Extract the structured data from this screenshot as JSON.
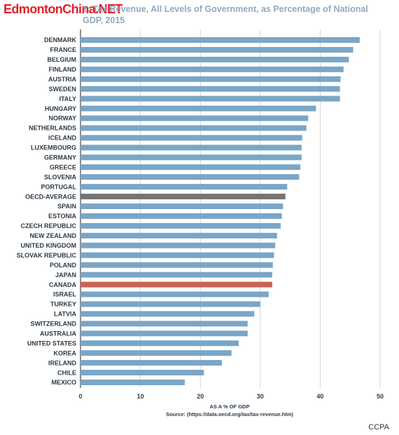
{
  "watermark": "EdmontonChina.NET",
  "credit": "CCPA",
  "chart_data": {
    "type": "bar",
    "orientation": "horizontal",
    "title": "1: Tax Revenue, All Levels of Government, as Percentage of National GDP, 2015",
    "xlabel": "AS A % OF GDP",
    "source": "Source: (https://data.oecd.org/tax/tax-revenue.htm)",
    "xlim": [
      0,
      50
    ],
    "xticks": [
      0,
      10,
      20,
      30,
      40,
      50
    ],
    "grid": true,
    "colors": {
      "default": "#7aa6c7",
      "oecd": "#747474",
      "canada": "#c96454"
    },
    "categories": [
      "DENMARK",
      "FRANCE",
      "BELGIUM",
      "FINLAND",
      "AUSTRIA",
      "SWEDEN",
      "ITALY",
      "HUNGARY",
      "NORWAY",
      "NETHERLANDS",
      "ICELAND",
      "LUXEMBOURG",
      "GERMANY",
      "GREECE",
      "SLOVENIA",
      "PORTUGAL",
      "OECD-AVERAGE",
      "SPAIN",
      "ESTONIA",
      "CZECH REPUBLIC",
      "NEW ZEALAND",
      "UNITED KINGDOM",
      "SLOVAK REPUBLIC",
      "POLAND",
      "JAPAN",
      "CANADA",
      "ISRAEL",
      "TURKEY",
      "LATVIA",
      "SWITZERLAND",
      "AUSTRALIA",
      "UNITED STATES",
      "KOREA",
      "IRELAND",
      "CHILE",
      "MEXICO"
    ],
    "values": [
      46.6,
      45.5,
      44.8,
      43.9,
      43.4,
      43.3,
      43.3,
      39.3,
      38.0,
      37.7,
      37.0,
      36.9,
      36.9,
      36.7,
      36.5,
      34.5,
      34.2,
      33.8,
      33.6,
      33.4,
      32.8,
      32.5,
      32.3,
      32.1,
      32.0,
      32.0,
      31.4,
      30.0,
      29.0,
      27.9,
      27.9,
      26.4,
      25.2,
      23.6,
      20.6,
      17.4
    ],
    "highlight": {
      "OECD-AVERAGE": "oecd",
      "CANADA": "canada"
    }
  }
}
